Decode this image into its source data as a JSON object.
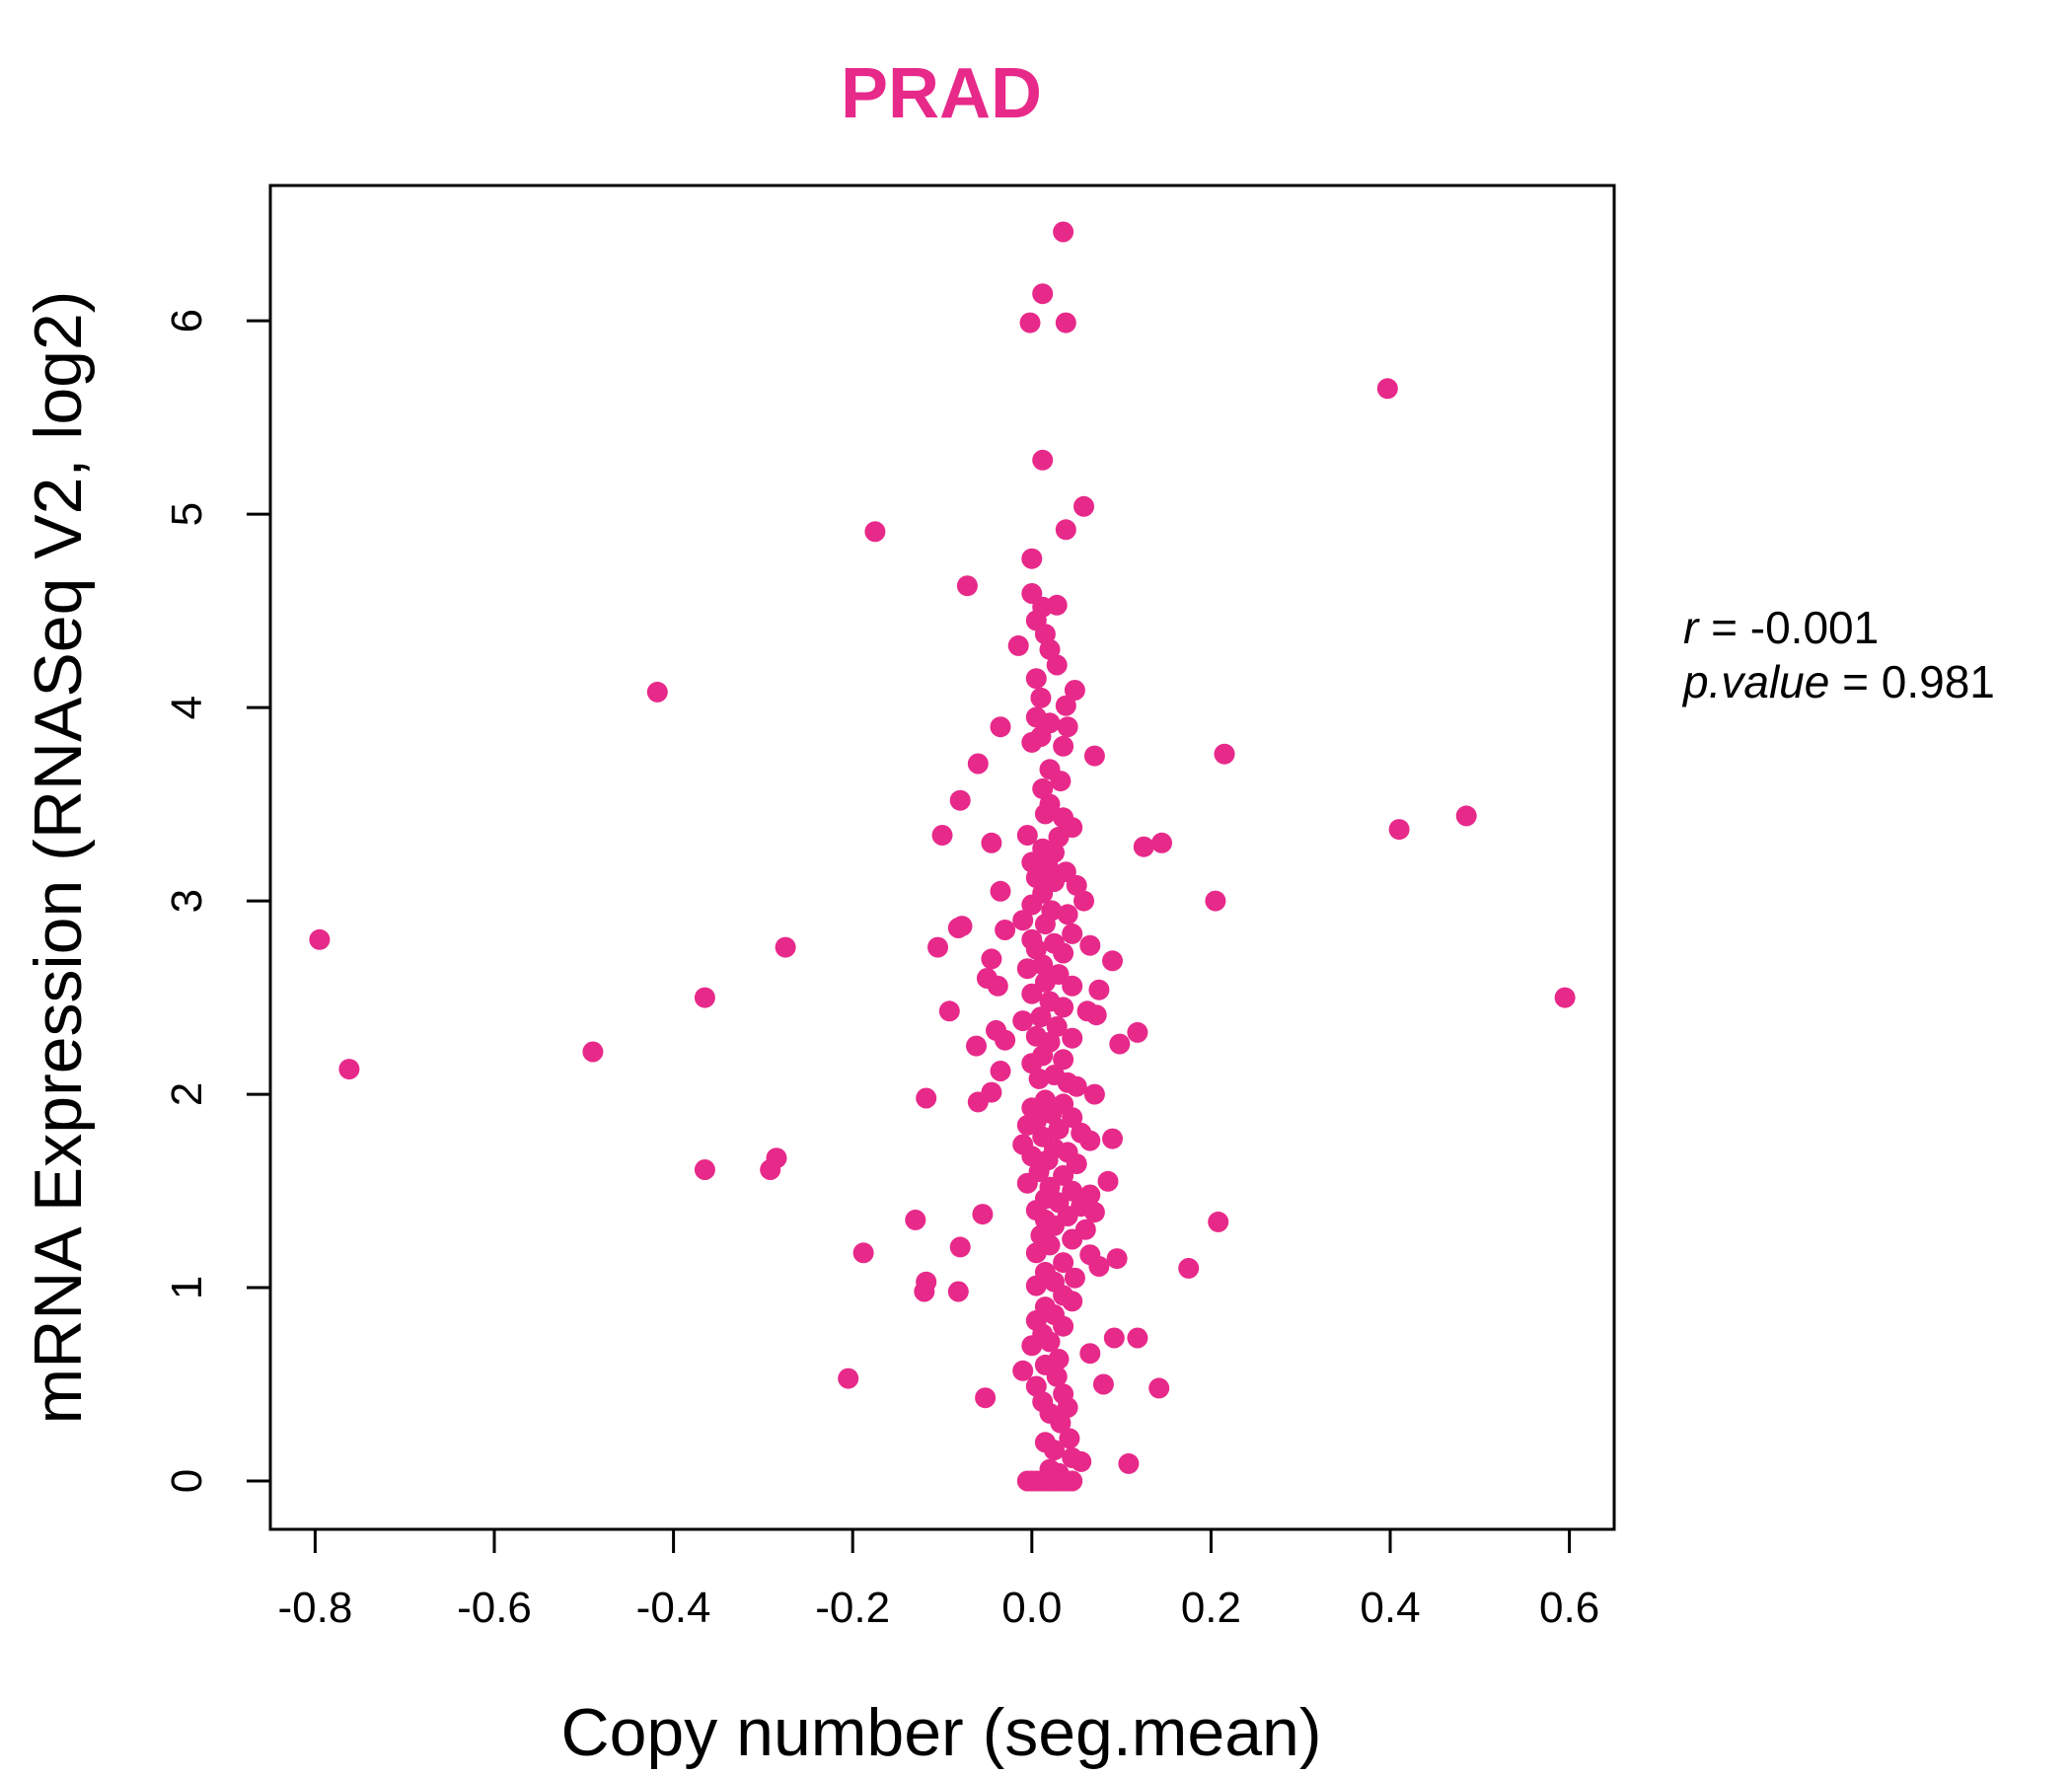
{
  "chart_data": {
    "type": "scatter",
    "title": "PRAD",
    "xlabel": "Copy number (seg.mean)",
    "ylabel": "mRNA Expression (RNASeq V2, log2)",
    "xlim": [
      -0.85,
      0.65
    ],
    "ylim": [
      -0.25,
      6.7
    ],
    "x_ticks": [
      -0.8,
      -0.6,
      -0.4,
      -0.2,
      0.0,
      0.2,
      0.4,
      0.6
    ],
    "x_tick_labels": [
      "-0.8",
      "-0.6",
      "-0.4",
      "-0.2",
      "0.0",
      "0.2",
      "0.4",
      "0.6"
    ],
    "y_ticks": [
      0,
      1,
      2,
      3,
      4,
      5,
      6
    ],
    "y_tick_labels": [
      "0",
      "1",
      "2",
      "3",
      "4",
      "5",
      "6"
    ],
    "grid": false,
    "point_color": "#E7298A",
    "stats": {
      "r_symbol": "r",
      "r_value": "-0.001",
      "p_symbol": "p.value",
      "p_value": "0.981"
    },
    "points": [
      [
        0.035,
        6.46
      ],
      [
        0.012,
        6.14
      ],
      [
        -0.002,
        5.99
      ],
      [
        0.038,
        5.99
      ],
      [
        0.397,
        5.65
      ],
      [
        0.012,
        5.28
      ],
      [
        0.058,
        5.04
      ],
      [
        -0.175,
        4.91
      ],
      [
        0.038,
        4.92
      ],
      [
        0.0,
        4.77
      ],
      [
        -0.072,
        4.63
      ],
      [
        0.0,
        4.59
      ],
      [
        0.012,
        4.52
      ],
      [
        0.028,
        4.53
      ],
      [
        0.005,
        4.45
      ],
      [
        0.015,
        4.38
      ],
      [
        -0.015,
        4.32
      ],
      [
        0.02,
        4.3
      ],
      [
        0.028,
        4.22
      ],
      [
        0.005,
        4.15
      ],
      [
        -0.418,
        4.08
      ],
      [
        0.048,
        4.09
      ],
      [
        0.01,
        4.05
      ],
      [
        0.038,
        4.01
      ],
      [
        0.005,
        3.95
      ],
      [
        0.02,
        3.92
      ],
      [
        -0.035,
        3.9
      ],
      [
        0.04,
        3.9
      ],
      [
        0.01,
        3.85
      ],
      [
        0.0,
        3.82
      ],
      [
        0.035,
        3.8
      ],
      [
        0.07,
        3.75
      ],
      [
        0.215,
        3.76
      ],
      [
        -0.06,
        3.71
      ],
      [
        0.02,
        3.68
      ],
      [
        0.032,
        3.62
      ],
      [
        0.012,
        3.58
      ],
      [
        -0.08,
        3.52
      ],
      [
        0.02,
        3.5
      ],
      [
        0.015,
        3.45
      ],
      [
        0.035,
        3.43
      ],
      [
        0.485,
        3.44
      ],
      [
        0.045,
        3.38
      ],
      [
        0.41,
        3.37
      ],
      [
        -0.1,
        3.34
      ],
      [
        -0.005,
        3.34
      ],
      [
        0.03,
        3.33
      ],
      [
        -0.045,
        3.3
      ],
      [
        0.125,
        3.28
      ],
      [
        0.145,
        3.3
      ],
      [
        0.012,
        3.27
      ],
      [
        0.025,
        3.25
      ],
      [
        0.0,
        3.2
      ],
      [
        0.018,
        3.18
      ],
      [
        0.038,
        3.15
      ],
      [
        0.005,
        3.12
      ],
      [
        0.025,
        3.1
      ],
      [
        0.05,
        3.08
      ],
      [
        -0.035,
        3.05
      ],
      [
        0.012,
        3.04
      ],
      [
        0.058,
        3.0
      ],
      [
        0.205,
        3.0
      ],
      [
        0.0,
        2.98
      ],
      [
        0.022,
        2.95
      ],
      [
        0.04,
        2.93
      ],
      [
        -0.01,
        2.9
      ],
      [
        0.015,
        2.88
      ],
      [
        -0.078,
        2.87
      ],
      [
        -0.082,
        2.86
      ],
      [
        -0.03,
        2.85
      ],
      [
        0.045,
        2.83
      ],
      [
        0.0,
        2.8
      ],
      [
        -0.795,
        2.8
      ],
      [
        0.025,
        2.78
      ],
      [
        0.065,
        2.77
      ],
      [
        -0.275,
        2.76
      ],
      [
        -0.105,
        2.76
      ],
      [
        0.005,
        2.75
      ],
      [
        0.035,
        2.73
      ],
      [
        -0.045,
        2.7
      ],
      [
        0.09,
        2.69
      ],
      [
        0.012,
        2.67
      ],
      [
        -0.005,
        2.65
      ],
      [
        0.03,
        2.62
      ],
      [
        -0.05,
        2.6
      ],
      [
        0.015,
        2.58
      ],
      [
        -0.038,
        2.56
      ],
      [
        0.045,
        2.56
      ],
      [
        0.075,
        2.54
      ],
      [
        0.0,
        2.52
      ],
      [
        -0.365,
        2.5
      ],
      [
        0.595,
        2.5
      ],
      [
        0.02,
        2.48
      ],
      [
        0.035,
        2.45
      ],
      [
        -0.092,
        2.43
      ],
      [
        0.062,
        2.43
      ],
      [
        0.072,
        2.41
      ],
      [
        0.01,
        2.4
      ],
      [
        -0.01,
        2.38
      ],
      [
        0.028,
        2.35
      ],
      [
        -0.04,
        2.33
      ],
      [
        0.118,
        2.32
      ],
      [
        0.005,
        2.3
      ],
      [
        0.045,
        2.29
      ],
      [
        -0.03,
        2.28
      ],
      [
        0.02,
        2.27
      ],
      [
        0.098,
        2.26
      ],
      [
        -0.062,
        2.25
      ],
      [
        -0.49,
        2.22
      ],
      [
        0.012,
        2.2
      ],
      [
        0.035,
        2.18
      ],
      [
        0.0,
        2.16
      ],
      [
        -0.762,
        2.13
      ],
      [
        -0.035,
        2.12
      ],
      [
        0.025,
        2.1
      ],
      [
        0.008,
        2.08
      ],
      [
        0.04,
        2.06
      ],
      [
        0.05,
        2.04
      ],
      [
        -0.045,
        2.01
      ],
      [
        0.07,
        2.0
      ],
      [
        -0.118,
        1.98
      ],
      [
        0.015,
        1.97
      ],
      [
        -0.06,
        1.96
      ],
      [
        0.035,
        1.95
      ],
      [
        0.0,
        1.93
      ],
      [
        0.022,
        1.9
      ],
      [
        0.045,
        1.88
      ],
      [
        0.005,
        1.86
      ],
      [
        -0.005,
        1.84
      ],
      [
        0.03,
        1.82
      ],
      [
        0.055,
        1.8
      ],
      [
        0.012,
        1.78
      ],
      [
        0.09,
        1.77
      ],
      [
        0.065,
        1.76
      ],
      [
        -0.01,
        1.74
      ],
      [
        0.025,
        1.72
      ],
      [
        0.04,
        1.7
      ],
      [
        0.0,
        1.68
      ],
      [
        -0.285,
        1.67
      ],
      [
        0.018,
        1.66
      ],
      [
        0.05,
        1.64
      ],
      [
        -0.365,
        1.61
      ],
      [
        -0.292,
        1.61
      ],
      [
        0.008,
        1.6
      ],
      [
        0.035,
        1.58
      ],
      [
        0.085,
        1.55
      ],
      [
        -0.005,
        1.54
      ],
      [
        0.02,
        1.52
      ],
      [
        0.045,
        1.5
      ],
      [
        0.065,
        1.48
      ],
      [
        0.015,
        1.46
      ],
      [
        0.03,
        1.44
      ],
      [
        0.055,
        1.42
      ],
      [
        0.005,
        1.4
      ],
      [
        0.07,
        1.39
      ],
      [
        -0.055,
        1.38
      ],
      [
        0.04,
        1.37
      ],
      [
        0.015,
        1.35
      ],
      [
        -0.13,
        1.35
      ],
      [
        0.208,
        1.34
      ],
      [
        0.025,
        1.32
      ],
      [
        0.06,
        1.3
      ],
      [
        0.01,
        1.27
      ],
      [
        0.045,
        1.25
      ],
      [
        0.02,
        1.22
      ],
      [
        -0.08,
        1.21
      ],
      [
        -0.188,
        1.18
      ],
      [
        0.005,
        1.18
      ],
      [
        0.065,
        1.17
      ],
      [
        0.095,
        1.15
      ],
      [
        0.035,
        1.13
      ],
      [
        0.075,
        1.11
      ],
      [
        0.175,
        1.1
      ],
      [
        0.015,
        1.08
      ],
      [
        0.048,
        1.05
      ],
      [
        0.025,
        1.03
      ],
      [
        -0.118,
        1.03
      ],
      [
        0.005,
        1.01
      ],
      [
        -0.12,
        0.98
      ],
      [
        -0.082,
        0.98
      ],
      [
        0.035,
        0.96
      ],
      [
        0.045,
        0.93
      ],
      [
        0.015,
        0.9
      ],
      [
        0.025,
        0.86
      ],
      [
        0.005,
        0.83
      ],
      [
        0.035,
        0.8
      ],
      [
        0.012,
        0.76
      ],
      [
        0.092,
        0.74
      ],
      [
        0.118,
        0.74
      ],
      [
        0.02,
        0.72
      ],
      [
        0.0,
        0.7
      ],
      [
        0.065,
        0.66
      ],
      [
        0.03,
        0.63
      ],
      [
        0.015,
        0.6
      ],
      [
        -0.01,
        0.57
      ],
      [
        0.028,
        0.54
      ],
      [
        -0.205,
        0.53
      ],
      [
        0.08,
        0.5
      ],
      [
        0.005,
        0.49
      ],
      [
        0.142,
        0.48
      ],
      [
        0.035,
        0.45
      ],
      [
        -0.052,
        0.43
      ],
      [
        0.012,
        0.41
      ],
      [
        0.04,
        0.38
      ],
      [
        0.02,
        0.35
      ],
      [
        0.032,
        0.3
      ],
      [
        0.042,
        0.22
      ],
      [
        0.015,
        0.2
      ],
      [
        0.025,
        0.16
      ],
      [
        0.045,
        0.12
      ],
      [
        0.055,
        0.1
      ],
      [
        0.108,
        0.09
      ],
      [
        0.02,
        0.06
      ],
      [
        0.03,
        0.04
      ],
      [
        -0.005,
        0.0
      ],
      [
        0.0,
        0.0
      ],
      [
        0.005,
        0.0
      ],
      [
        0.01,
        0.0
      ],
      [
        0.015,
        0.0
      ],
      [
        0.02,
        0.0
      ],
      [
        0.025,
        0.0
      ],
      [
        0.03,
        0.0
      ],
      [
        0.035,
        0.0
      ],
      [
        0.04,
        0.0
      ],
      [
        0.045,
        0.0
      ]
    ]
  }
}
